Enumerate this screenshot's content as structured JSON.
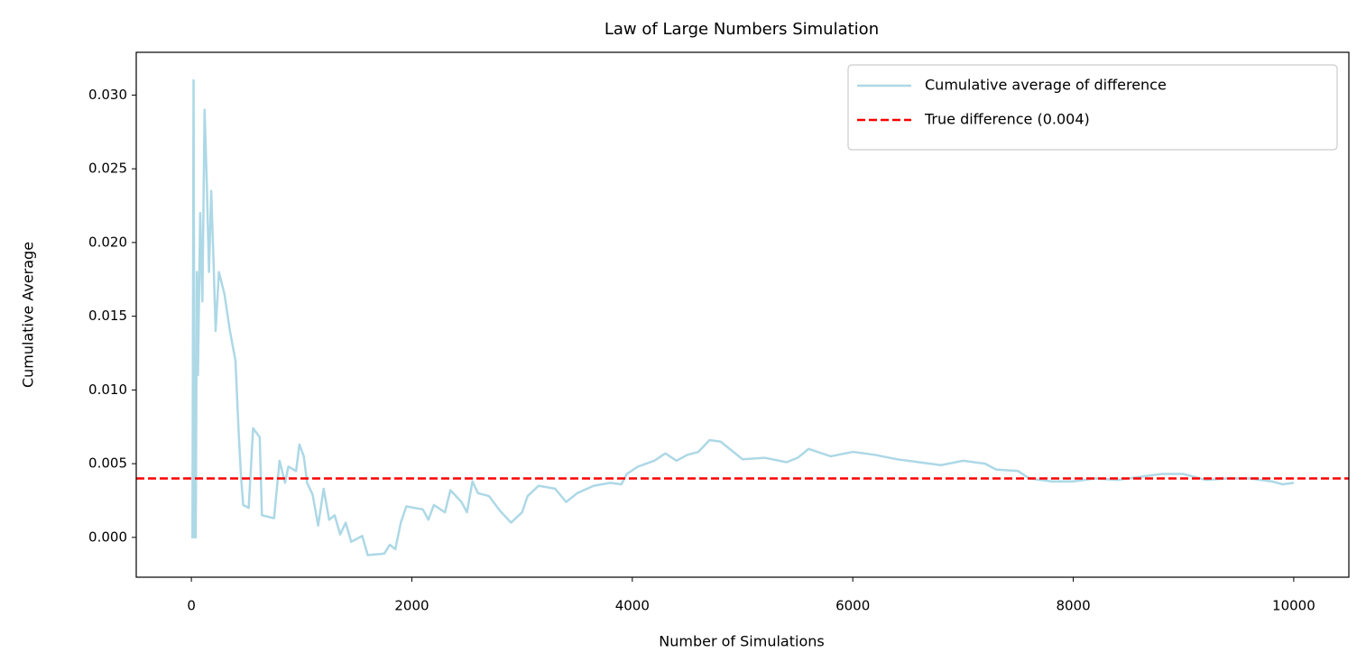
{
  "chart_data": {
    "type": "line",
    "title": "Law of Large Numbers Simulation",
    "x_label": "Number of Simulations",
    "y_label": "Cumulative Average",
    "x": [
      0,
      10,
      20,
      30,
      40,
      50,
      60,
      80,
      100,
      120,
      140,
      160,
      180,
      200,
      220,
      250,
      300,
      350,
      400,
      430,
      450,
      470,
      520,
      560,
      620,
      640,
      750,
      800,
      850,
      880,
      950,
      980,
      1020,
      1050,
      1100,
      1150,
      1200,
      1250,
      1300,
      1350,
      1400,
      1450,
      1550,
      1600,
      1750,
      1800,
      1850,
      1900,
      1950,
      2100,
      2150,
      2200,
      2300,
      2350,
      2450,
      2500,
      2550,
      2600,
      2700,
      2800,
      2900,
      3000,
      3050,
      3150,
      3300,
      3400,
      3500,
      3650,
      3800,
      3900,
      3950,
      4050,
      4200,
      4300,
      4400,
      4500,
      4600,
      4700,
      4800,
      4900,
      5000,
      5200,
      5400,
      5500,
      5600,
      5800,
      6000,
      6200,
      6400,
      6600,
      6800,
      7000,
      7200,
      7300,
      7500,
      7600,
      7800,
      8000,
      8200,
      8400,
      8600,
      8800,
      9000,
      9200,
      9400,
      9600,
      9800,
      9900,
      10000
    ],
    "series": [
      {
        "name": "Cumulative average of difference",
        "color": "#add8e6",
        "values": [
          0,
          0,
          0.031,
          0,
          0,
          0.018,
          0.011,
          0.022,
          0.016,
          0.029,
          0.024,
          0.018,
          0.0235,
          0.019,
          0.014,
          0.018,
          0.0165,
          0.014,
          0.012,
          0.007,
          0.0042,
          0.0022,
          0.002,
          0.0074,
          0.0068,
          0.0015,
          0.0013,
          0.0052,
          0.0037,
          0.0048,
          0.0045,
          0.0063,
          0.0055,
          0.0037,
          0.0029,
          0.0008,
          0.0033,
          0.0012,
          0.0015,
          0.0002,
          0.001,
          -0.0003,
          0.0001,
          -0.0012,
          -0.0011,
          -0.0005,
          -0.0008,
          0.001,
          0.0021,
          0.0019,
          0.0012,
          0.0022,
          0.0017,
          0.0032,
          0.0024,
          0.0017,
          0.0038,
          0.003,
          0.0028,
          0.0018,
          0.001,
          0.0017,
          0.0028,
          0.0035,
          0.0033,
          0.0024,
          0.003,
          0.0035,
          0.0037,
          0.0036,
          0.0043,
          0.0048,
          0.0052,
          0.0057,
          0.0052,
          0.0056,
          0.0058,
          0.0066,
          0.0065,
          0.0059,
          0.0053,
          0.0054,
          0.0051,
          0.0054,
          0.006,
          0.0055,
          0.0058,
          0.0056,
          0.0053,
          0.0051,
          0.0049,
          0.0052,
          0.005,
          0.0046,
          0.0045,
          0.004,
          0.0038,
          0.0038,
          0.004,
          0.0039,
          0.0041,
          0.0043,
          0.0043,
          0.0039,
          0.004,
          0.004,
          0.0038,
          0.0036,
          0.0037
        ]
      }
    ],
    "hlines": [
      {
        "name": "True difference (0.004)",
        "value": 0.004,
        "color": "#ff0000",
        "style": "dashed"
      }
    ],
    "xlim": [
      -500,
      10500
    ],
    "ylim": [
      -0.0027,
      0.0329
    ],
    "xticks": [
      0,
      2000,
      4000,
      6000,
      8000,
      10000
    ],
    "yticks": [
      {
        "value": 0,
        "label": "0.000"
      },
      {
        "value": 0.005,
        "label": "0.005"
      },
      {
        "value": 0.01,
        "label": "0.010"
      },
      {
        "value": 0.015,
        "label": "0.015"
      },
      {
        "value": 0.02,
        "label": "0.020"
      },
      {
        "value": 0.025,
        "label": "0.025"
      },
      {
        "value": 0.03,
        "label": "0.030"
      }
    ],
    "legend": "upper right"
  }
}
